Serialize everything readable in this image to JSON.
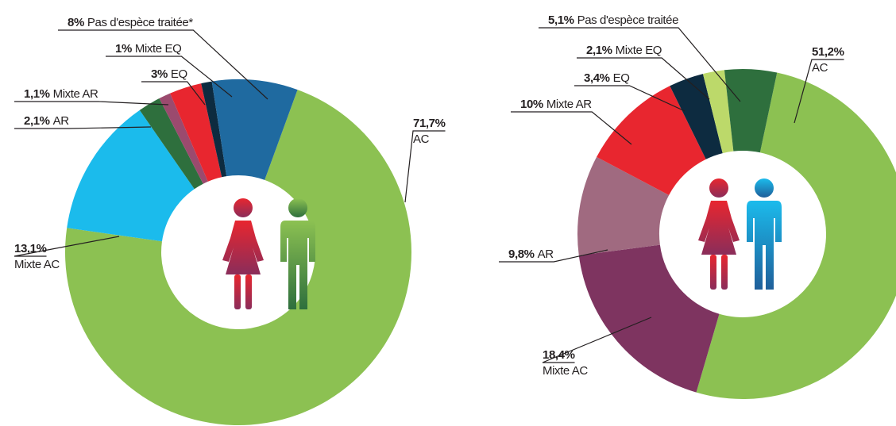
{
  "chart_data": [
    {
      "type": "pie",
      "categories": [
        "AC",
        "Mixte AC",
        "AR",
        "Mixte AR",
        "EQ",
        "Mixte EQ",
        "Pas d'espèce traitée*"
      ],
      "values": [
        71.7,
        13.1,
        2.1,
        1.1,
        3,
        1,
        8
      ],
      "value_labels": [
        "71,7%",
        "13,1%",
        "2,1%",
        "1,1%",
        "3%",
        "1%",
        "8%"
      ],
      "colors": [
        "#8cc152",
        "#1bbbec",
        "#2e6f3d",
        "#9b4a6e",
        "#e8262f",
        "#0d2b40",
        "#1f6aa0"
      ]
    },
    {
      "type": "pie",
      "categories": [
        "AC",
        "Mixte AC",
        "AR",
        "Mixte AR",
        "EQ",
        "Mixte EQ",
        "Pas d'espèce traitée"
      ],
      "values": [
        51.2,
        18.4,
        9.8,
        10,
        3.4,
        2.1,
        5.1
      ],
      "value_labels": [
        "51,2%",
        "18,4%",
        "9,8%",
        "10%",
        "3,4%",
        "2,1%",
        "5,1%"
      ],
      "colors": [
        "#8cc152",
        "#7e3460",
        "#a06a80",
        "#e8262f",
        "#0d2b40",
        "#bcd96a",
        "#2e6f3d"
      ]
    }
  ]
}
